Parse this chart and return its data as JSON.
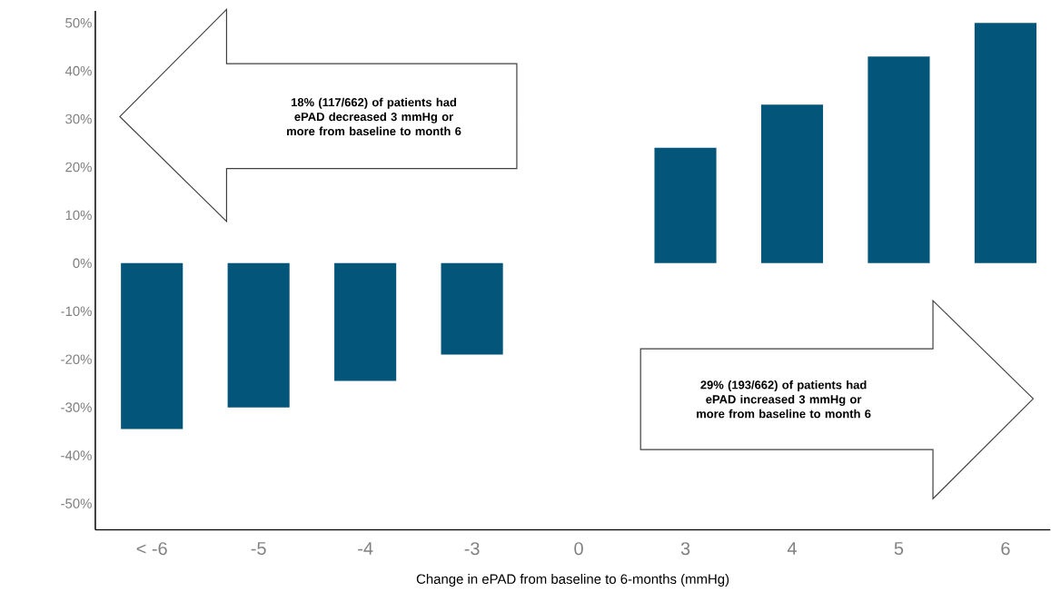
{
  "chart_data": {
    "type": "bar",
    "xlabel": "Change in ePAD from baseline to 6-months (mmHg)",
    "categories": [
      "< -6",
      "-5",
      "-4",
      "-3",
      "0",
      "3",
      "4",
      "5",
      "6"
    ],
    "values": [
      -34.5,
      -30,
      -24.5,
      -19,
      null,
      24,
      33,
      43,
      50
    ],
    "color": "#03567a",
    "ylim": [
      -55.5,
      52.5
    ],
    "yticks": [
      {
        "value": -50,
        "label": "-50%"
      },
      {
        "value": -40,
        "label": "-40%"
      },
      {
        "value": -30,
        "label": "-30%"
      },
      {
        "value": -20,
        "label": "-20%"
      },
      {
        "value": -10,
        "label": "-10%"
      },
      {
        "value": 0,
        "label": "0%"
      },
      {
        "value": 10,
        "label": "10%"
      },
      {
        "value": 20,
        "label": "20%"
      },
      {
        "value": 30,
        "label": "30%"
      },
      {
        "value": 40,
        "label": "40%"
      },
      {
        "value": 50,
        "label": "50%"
      }
    ],
    "annotations": [
      "18% (117/662) of patients had ePAD decreased 3 mmHg or more from baseline to month 6",
      "29% (193/662) of patients had ePAD increased 3 mmHg or more from baseline to month 6"
    ]
  }
}
